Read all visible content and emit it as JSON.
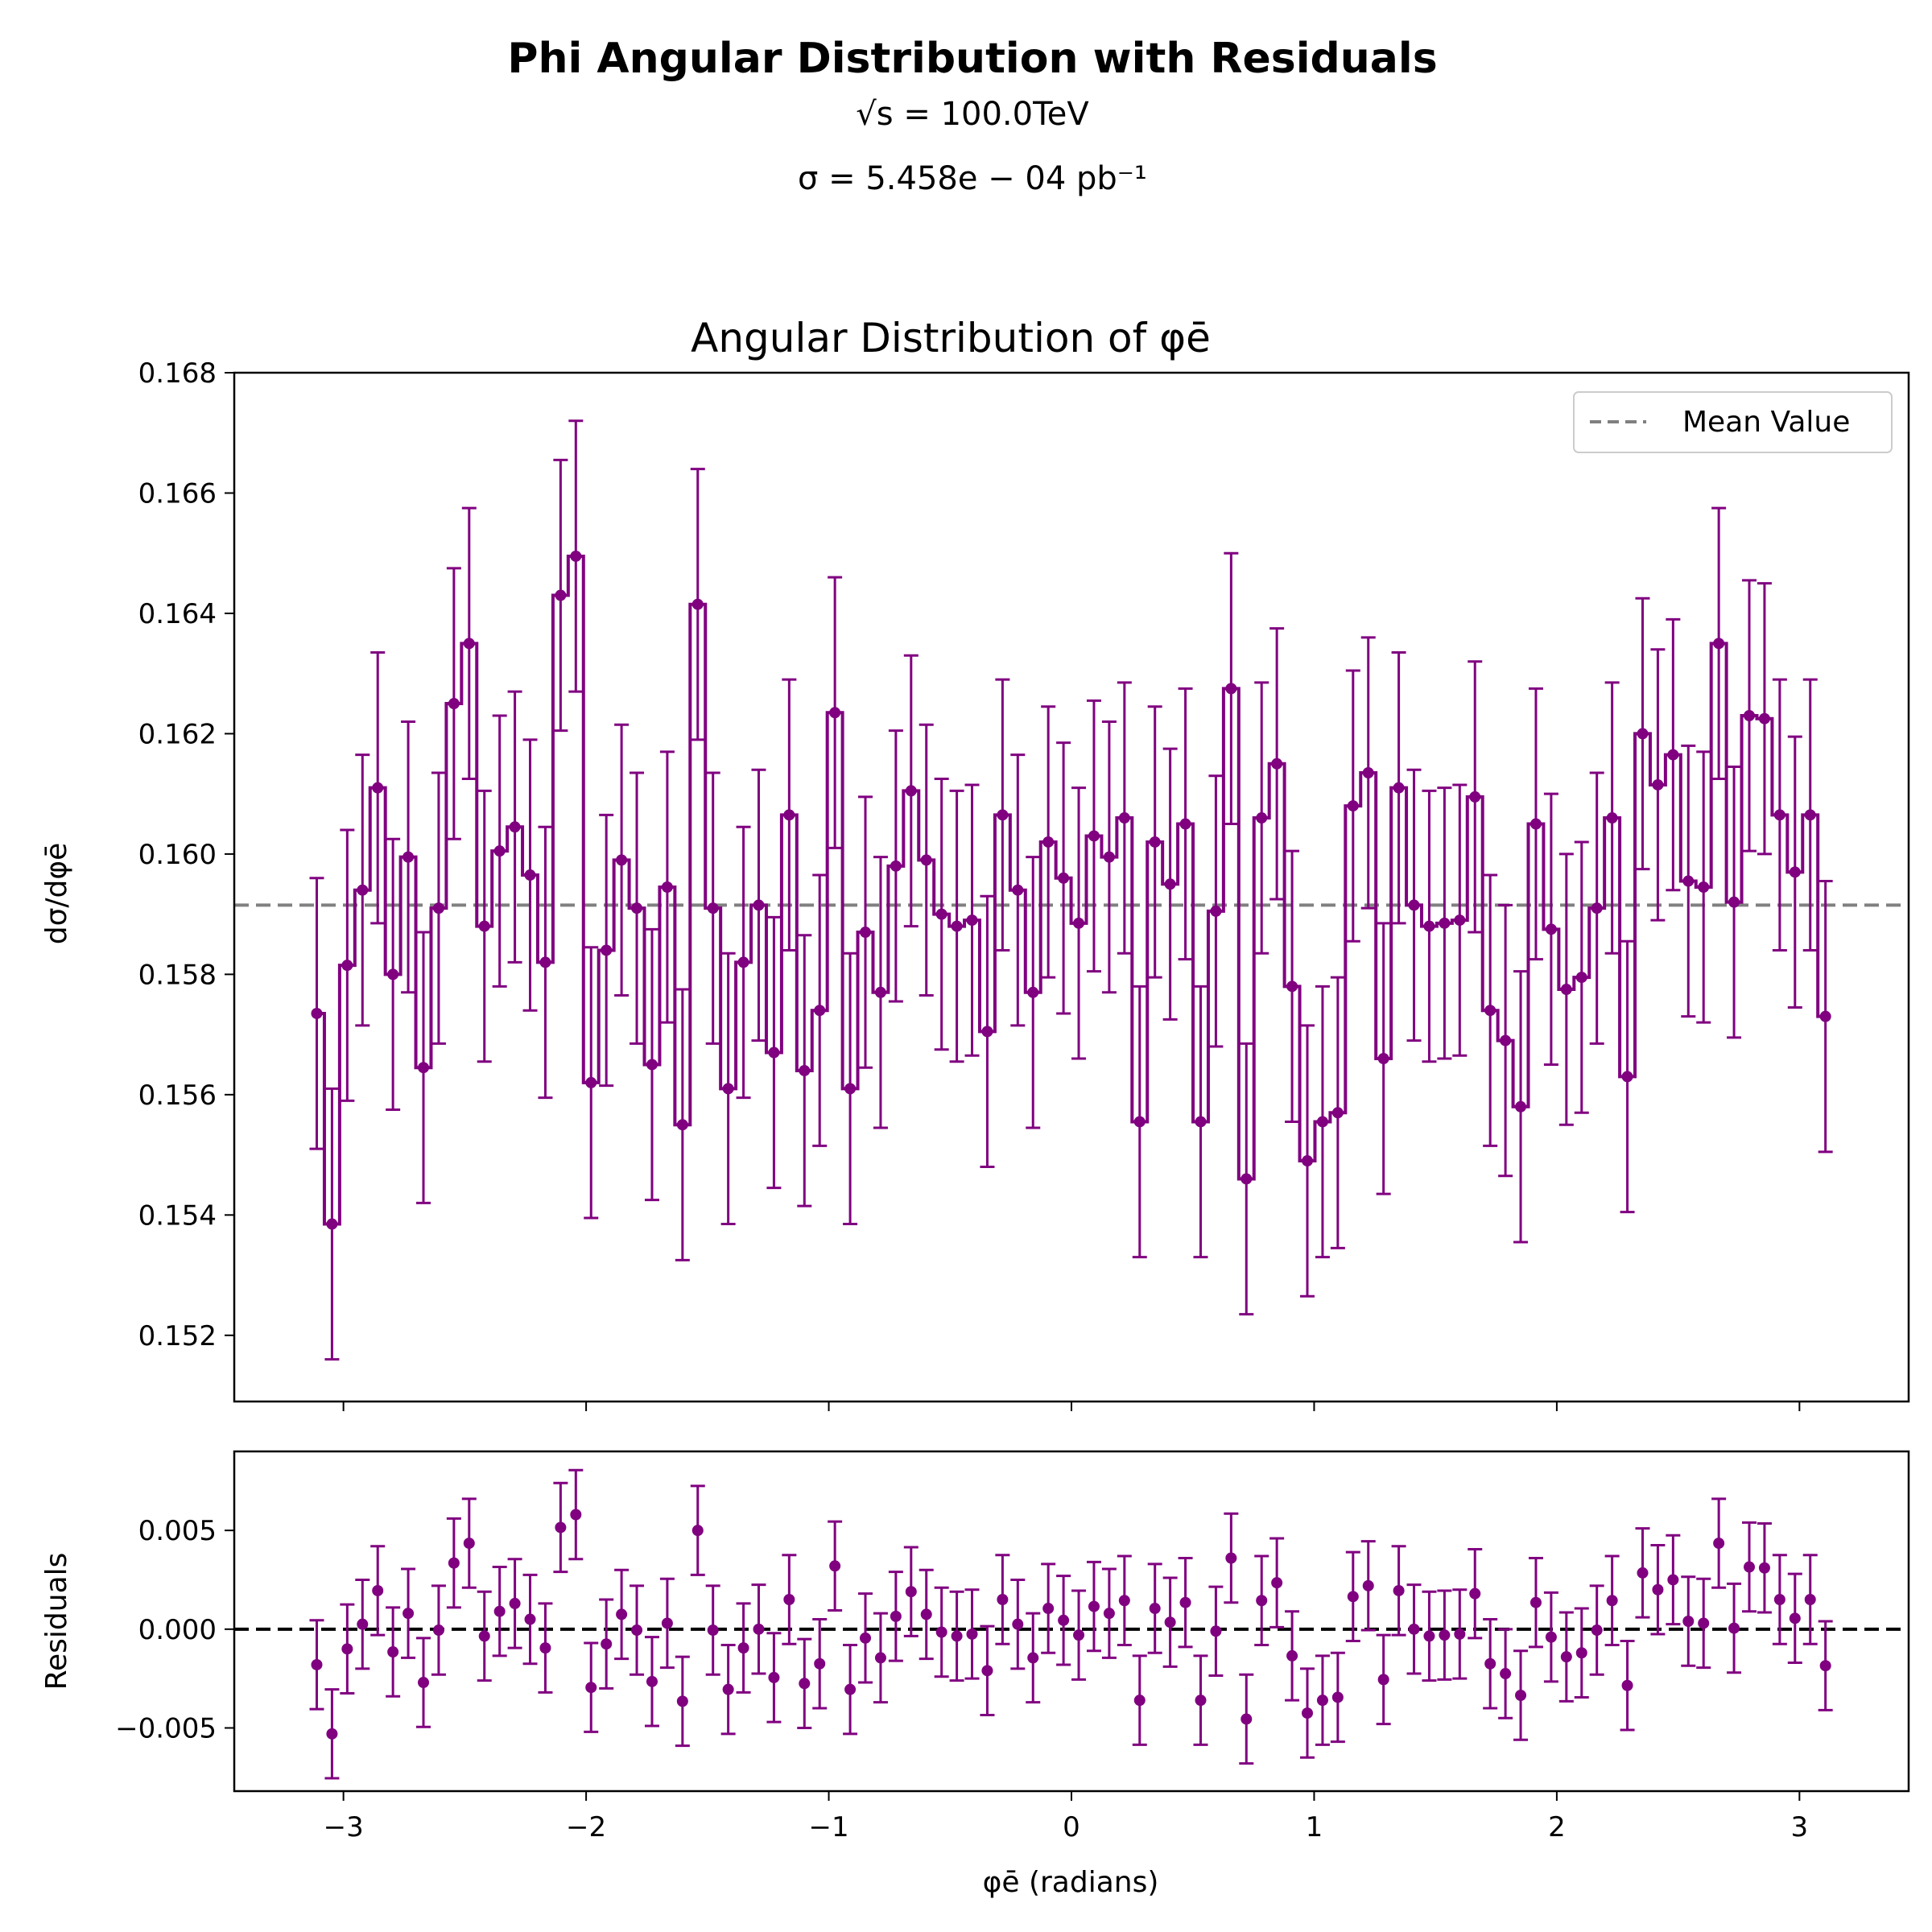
{
  "header": {
    "title": "Phi Angular Distribution with Residuals",
    "energy_label": "√s = 100.0TeV",
    "sigma_label": "σ = 5.458e − 04 pb⁻¹"
  },
  "colors": {
    "data": "#800080",
    "mean_line": "#808080",
    "zero_line": "#000000"
  },
  "chart_data": [
    {
      "type": "line",
      "title": "Angular Distribution of φē",
      "xlabel": "",
      "ylabel": "dσ/dφē",
      "xlim": [
        -3.45,
        3.45
      ],
      "ylim": [
        0.1509,
        0.168
      ],
      "yticks": [
        0.152,
        0.154,
        0.156,
        0.158,
        0.16,
        0.162,
        0.164,
        0.166,
        0.168
      ],
      "ytick_labels": [
        "0.152",
        "0.154",
        "0.156",
        "0.158",
        "0.160",
        "0.162",
        "0.164",
        "0.166",
        "0.168"
      ],
      "xticks": [
        -3,
        -2,
        -1,
        0,
        1,
        2,
        3
      ],
      "mean_value": 0.15915,
      "legend": {
        "position": "top-right",
        "entries": [
          "Mean Value"
        ]
      },
      "grid": false,
      "error": 0.00225,
      "x_start": -3.11,
      "x_step": 0.0628,
      "values": [
        0.15735,
        0.15385,
        0.15815,
        0.1594,
        0.1611,
        0.158,
        0.15995,
        0.15645,
        0.1591,
        0.1625,
        0.1635,
        0.1588,
        0.16005,
        0.16045,
        0.15965,
        0.1582,
        0.1643,
        0.16495,
        0.1562,
        0.1584,
        0.1599,
        0.1591,
        0.1565,
        0.15945,
        0.1555,
        0.16415,
        0.1591,
        0.1561,
        0.1582,
        0.15915,
        0.1567,
        0.16065,
        0.1564,
        0.1574,
        0.16235,
        0.1561,
        0.1587,
        0.1577,
        0.1598,
        0.16105,
        0.1599,
        0.159,
        0.1588,
        0.1589,
        0.15705,
        0.16065,
        0.1594,
        0.1577,
        0.1602,
        0.1596,
        0.15885,
        0.1603,
        0.15995,
        0.1606,
        0.15555,
        0.1602,
        0.1595,
        0.1605,
        0.15555,
        0.15905,
        0.16275,
        0.1546,
        0.1606,
        0.1615,
        0.1578,
        0.1549,
        0.15555,
        0.1557,
        0.1608,
        0.16135,
        0.1566,
        0.1611,
        0.15915,
        0.1588,
        0.15885,
        0.1589,
        0.16095,
        0.1574,
        0.1569,
        0.1558,
        0.1605,
        0.15875,
        0.15775,
        0.15795,
        0.1591,
        0.1606,
        0.1563,
        0.162,
        0.16115,
        0.16165,
        0.15955,
        0.15945,
        0.1635,
        0.1592,
        0.1623,
        0.16225,
        0.16065,
        0.1597,
        0.16065,
        0.1573
      ]
    },
    {
      "type": "scatter",
      "title": "",
      "xlabel": "φē (radians)",
      "ylabel": "Residuals",
      "xlim": [
        -3.45,
        3.45
      ],
      "ylim": [
        -0.0082,
        0.009
      ],
      "yticks": [
        -0.005,
        0.0,
        0.005
      ],
      "ytick_labels": [
        "−0.005",
        "0.000",
        "0.005"
      ],
      "xticks": [
        -3,
        -2,
        -1,
        0,
        1,
        2,
        3
      ],
      "xtick_labels": [
        "−3",
        "−2",
        "−1",
        "0",
        "1",
        "2",
        "3"
      ],
      "reference_line": 0.0,
      "error": 0.00225,
      "note_values": "residual = value − mean_value"
    }
  ]
}
